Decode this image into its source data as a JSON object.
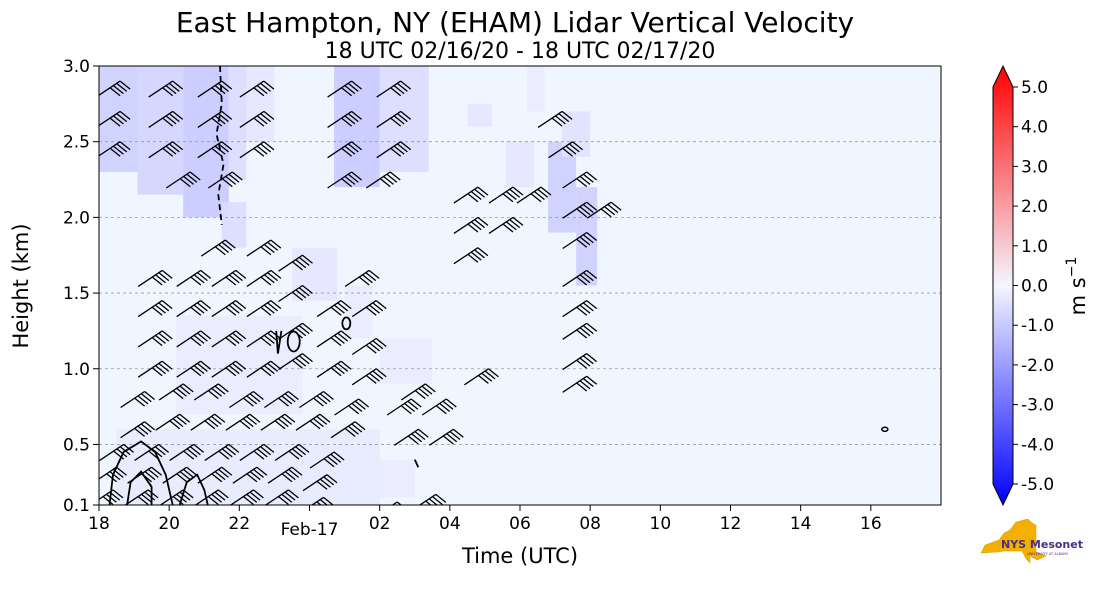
{
  "chart_data": {
    "type": "heatmap",
    "title": "East Hampton, NY (EHAM) Lidar Vertical Velocity",
    "subtitle": "18 UTC 02/16/20 - 18 UTC 02/17/20",
    "xlabel": "Time (UTC)",
    "ylabel": "Height (km)",
    "xlim": [
      18,
      42
    ],
    "ylim": [
      0.1,
      3.0
    ],
    "x_ticks": [
      {
        "value": 18,
        "label": "18"
      },
      {
        "value": 20,
        "label": "20"
      },
      {
        "value": 22,
        "label": "22"
      },
      {
        "value": 24,
        "label": "Feb-17"
      },
      {
        "value": 26,
        "label": "02"
      },
      {
        "value": 28,
        "label": "04"
      },
      {
        "value": 30,
        "label": "06"
      },
      {
        "value": 32,
        "label": "08"
      },
      {
        "value": 34,
        "label": "10"
      },
      {
        "value": 36,
        "label": "12"
      },
      {
        "value": 38,
        "label": "14"
      },
      {
        "value": 40,
        "label": "16"
      }
    ],
    "y_ticks": [
      {
        "value": 0.1,
        "label": "0.1"
      },
      {
        "value": 0.5,
        "label": "0.5"
      },
      {
        "value": 1.0,
        "label": "1.0"
      },
      {
        "value": 1.5,
        "label": "1.5"
      },
      {
        "value": 2.0,
        "label": "2.0"
      },
      {
        "value": 2.5,
        "label": "2.5"
      },
      {
        "value": 3.0,
        "label": "3.0"
      }
    ],
    "grid": "horizontal dashed",
    "colorbar": {
      "label": "m s",
      "label_superscript": "−1",
      "range": [
        -5.0,
        5.0
      ],
      "ticks": [
        "5.0",
        "4.0",
        "3.0",
        "2.0",
        "1.0",
        "0.0",
        "-1.0",
        "-2.0",
        "-3.0",
        "-4.0",
        "-5.0"
      ],
      "colors": {
        "max": "#ff0000",
        "zero": "#f0f6ff",
        "min": "#0000ff"
      }
    },
    "velocity_regions": [
      {
        "x0": 18.0,
        "x1": 19.1,
        "y0": 2.3,
        "y1": 3.0,
        "w": -0.8
      },
      {
        "x0": 19.1,
        "x1": 20.4,
        "y0": 2.15,
        "y1": 3.0,
        "w": -0.7
      },
      {
        "x0": 20.4,
        "x1": 21.7,
        "y0": 2.0,
        "y1": 3.0,
        "w": -0.9
      },
      {
        "x0": 21.7,
        "x1": 22.2,
        "y0": 2.25,
        "y1": 3.0,
        "w": -0.5
      },
      {
        "x0": 22.2,
        "x1": 23.0,
        "y0": 2.5,
        "y1": 3.0,
        "w": -0.3
      },
      {
        "x0": 21.5,
        "x1": 22.2,
        "y0": 1.8,
        "y1": 2.1,
        "w": -0.5
      },
      {
        "x0": 24.7,
        "x1": 26.0,
        "y0": 2.2,
        "y1": 3.0,
        "w": -0.9
      },
      {
        "x0": 26.0,
        "x1": 27.4,
        "y0": 2.3,
        "y1": 3.0,
        "w": -0.5
      },
      {
        "x0": 28.5,
        "x1": 29.2,
        "y0": 2.6,
        "y1": 2.75,
        "w": -0.3
      },
      {
        "x0": 30.2,
        "x1": 30.7,
        "y0": 2.7,
        "y1": 3.0,
        "w": -0.2
      },
      {
        "x0": 29.6,
        "x1": 30.4,
        "y0": 2.2,
        "y1": 2.5,
        "w": -0.3
      },
      {
        "x0": 30.8,
        "x1": 31.6,
        "y0": 1.9,
        "y1": 2.5,
        "w": -0.8
      },
      {
        "x0": 31.6,
        "x1": 32.2,
        "y0": 1.55,
        "y1": 2.2,
        "w": -0.8
      },
      {
        "x0": 31.2,
        "x1": 32.0,
        "y0": 2.4,
        "y1": 2.7,
        "w": -0.4
      },
      {
        "x0": 20.2,
        "x1": 23.8,
        "y0": 0.7,
        "y1": 1.35,
        "w": -0.2
      },
      {
        "x0": 18.5,
        "x1": 26.0,
        "y0": 0.1,
        "y1": 0.6,
        "w": -0.25
      },
      {
        "x0": 23.5,
        "x1": 24.8,
        "y0": 1.45,
        "y1": 1.8,
        "w": -0.3
      },
      {
        "x0": 25.0,
        "x1": 25.8,
        "y0": 1.2,
        "y1": 1.55,
        "w": -0.2
      },
      {
        "x0": 26.0,
        "x1": 27.5,
        "y0": 0.9,
        "y1": 1.2,
        "w": -0.2
      },
      {
        "x0": 26.0,
        "x1": 27.0,
        "y0": 0.15,
        "y1": 0.4,
        "w": -0.2
      }
    ],
    "wind_barbs": [
      [
        18.6,
        2.9
      ],
      [
        18.6,
        2.7
      ],
      [
        18.6,
        2.5
      ],
      [
        20.1,
        2.9
      ],
      [
        20.1,
        2.7
      ],
      [
        20.1,
        2.5
      ],
      [
        20.6,
        2.3
      ],
      [
        21.5,
        2.9
      ],
      [
        21.5,
        2.7
      ],
      [
        21.5,
        2.5
      ],
      [
        21.8,
        2.3
      ],
      [
        22.7,
        2.9
      ],
      [
        22.7,
        2.7
      ],
      [
        22.7,
        2.5
      ],
      [
        25.2,
        2.9
      ],
      [
        25.2,
        2.7
      ],
      [
        25.2,
        2.5
      ],
      [
        25.2,
        2.3
      ],
      [
        26.6,
        2.9
      ],
      [
        26.6,
        2.7
      ],
      [
        26.6,
        2.5
      ],
      [
        26.3,
        2.3
      ],
      [
        28.8,
        2.2
      ],
      [
        29.8,
        2.2
      ],
      [
        30.6,
        2.2
      ],
      [
        31.2,
        2.7
      ],
      [
        31.5,
        2.5
      ],
      [
        31.9,
        2.3
      ],
      [
        28.8,
        2.0
      ],
      [
        29.8,
        2.0
      ],
      [
        31.9,
        2.1
      ],
      [
        32.6,
        2.1
      ],
      [
        28.8,
        1.8
      ],
      [
        31.9,
        1.9
      ],
      [
        31.9,
        1.65
      ],
      [
        21.6,
        1.85
      ],
      [
        22.9,
        1.85
      ],
      [
        19.8,
        1.65
      ],
      [
        20.9,
        1.65
      ],
      [
        21.9,
        1.65
      ],
      [
        22.9,
        1.65
      ],
      [
        23.8,
        1.75
      ],
      [
        25.7,
        1.65
      ],
      [
        19.8,
        1.45
      ],
      [
        20.9,
        1.45
      ],
      [
        21.9,
        1.45
      ],
      [
        22.9,
        1.45
      ],
      [
        23.8,
        1.55
      ],
      [
        24.9,
        1.45
      ],
      [
        25.9,
        1.45
      ],
      [
        31.9,
        1.45
      ],
      [
        31.9,
        1.3
      ],
      [
        19.8,
        1.25
      ],
      [
        20.9,
        1.25
      ],
      [
        21.9,
        1.25
      ],
      [
        22.9,
        1.25
      ],
      [
        23.8,
        1.3
      ],
      [
        24.9,
        1.25
      ],
      [
        25.9,
        1.2
      ],
      [
        31.9,
        1.1
      ],
      [
        31.9,
        0.95
      ],
      [
        19.8,
        1.05
      ],
      [
        20.9,
        1.05
      ],
      [
        21.9,
        1.05
      ],
      [
        22.9,
        1.05
      ],
      [
        23.8,
        1.1
      ],
      [
        24.9,
        1.05
      ],
      [
        25.9,
        1.0
      ],
      [
        29.1,
        1.0
      ],
      [
        27.3,
        0.9
      ],
      [
        19.3,
        0.85
      ],
      [
        20.4,
        0.9
      ],
      [
        21.4,
        0.9
      ],
      [
        22.4,
        0.85
      ],
      [
        23.4,
        0.85
      ],
      [
        24.4,
        0.85
      ],
      [
        25.4,
        0.8
      ],
      [
        26.9,
        0.8
      ],
      [
        27.9,
        0.8
      ],
      [
        19.3,
        0.65
      ],
      [
        20.3,
        0.7
      ],
      [
        21.3,
        0.7
      ],
      [
        22.3,
        0.7
      ],
      [
        23.3,
        0.7
      ],
      [
        24.3,
        0.7
      ],
      [
        25.3,
        0.65
      ],
      [
        27.1,
        0.6
      ],
      [
        28.1,
        0.6
      ],
      [
        18.7,
        0.5
      ],
      [
        19.7,
        0.5
      ],
      [
        20.7,
        0.5
      ],
      [
        21.7,
        0.5
      ],
      [
        22.7,
        0.5
      ],
      [
        23.7,
        0.5
      ],
      [
        24.7,
        0.45
      ],
      [
        18.5,
        0.35
      ],
      [
        19.5,
        0.35
      ],
      [
        20.5,
        0.35
      ],
      [
        21.5,
        0.35
      ],
      [
        22.5,
        0.35
      ],
      [
        23.5,
        0.35
      ],
      [
        24.5,
        0.3
      ],
      [
        18.4,
        0.2
      ],
      [
        19.4,
        0.2
      ],
      [
        20.4,
        0.2
      ],
      [
        21.4,
        0.2
      ],
      [
        22.4,
        0.2
      ],
      [
        23.4,
        0.2
      ],
      [
        24.4,
        0.15
      ],
      [
        26.5,
        0.12
      ],
      [
        27.6,
        0.17
      ]
    ],
    "logo": {
      "text": "NYS Mesonet",
      "subtext": "UNIVERSITY AT ALBANY"
    }
  }
}
